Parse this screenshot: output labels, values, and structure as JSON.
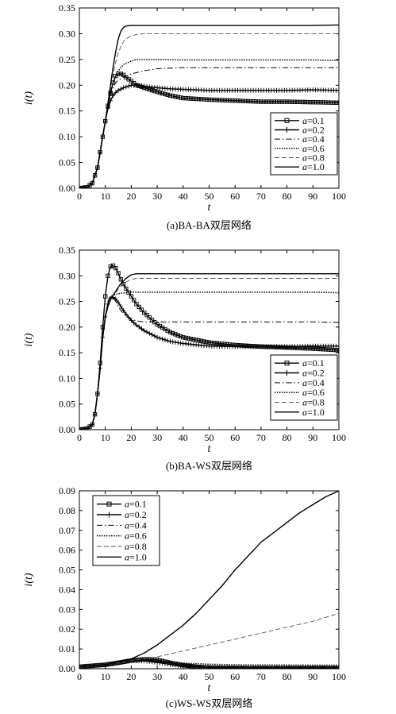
{
  "chart_data": [
    {
      "type": "line",
      "caption": "(a)BA-BA双层网络",
      "xlabel": "t",
      "ylabel": "i(t)",
      "xlim": [
        0,
        100
      ],
      "ylim": [
        0,
        0.35
      ],
      "xticks": [
        0,
        10,
        20,
        30,
        40,
        50,
        60,
        70,
        80,
        90,
        100
      ],
      "yticks": [
        "0.00",
        "0.05",
        "0.10",
        "0.15",
        "0.20",
        "0.25",
        "0.30",
        "0.35"
      ],
      "legend_position": "bottom-right",
      "grid": false,
      "series": [
        {
          "name": "a=0.1",
          "style": "square",
          "x": [
            0,
            3,
            5,
            7,
            8,
            9,
            10,
            11,
            12,
            13,
            14,
            15,
            16,
            17,
            18,
            20,
            22,
            25,
            30,
            35,
            40,
            50,
            60,
            70,
            80,
            90,
            100
          ],
          "y": [
            0,
            0.002,
            0.01,
            0.04,
            0.07,
            0.1,
            0.13,
            0.16,
            0.185,
            0.205,
            0.218,
            0.222,
            0.222,
            0.22,
            0.215,
            0.208,
            0.2,
            0.195,
            0.187,
            0.18,
            0.175,
            0.172,
            0.17,
            0.168,
            0.168,
            0.167,
            0.166
          ]
        },
        {
          "name": "a=0.2",
          "style": "plus",
          "x": [
            0,
            3,
            5,
            7,
            8,
            9,
            10,
            11,
            12,
            13,
            14,
            15,
            17,
            20,
            22,
            25,
            30,
            35,
            40,
            50,
            60,
            70,
            80,
            90,
            100
          ],
          "y": [
            0,
            0.002,
            0.01,
            0.04,
            0.07,
            0.1,
            0.13,
            0.155,
            0.17,
            0.18,
            0.186,
            0.19,
            0.195,
            0.2,
            0.2,
            0.198,
            0.195,
            0.193,
            0.192,
            0.19,
            0.19,
            0.19,
            0.19,
            0.191,
            0.19
          ]
        },
        {
          "name": "a=0.4",
          "style": "dashdot",
          "x": [
            0,
            3,
            5,
            7,
            8,
            9,
            10,
            11,
            12,
            13,
            14,
            15,
            17,
            20,
            25,
            30,
            40,
            50,
            60,
            70,
            80,
            90,
            100
          ],
          "y": [
            0,
            0.002,
            0.01,
            0.04,
            0.07,
            0.1,
            0.13,
            0.16,
            0.18,
            0.195,
            0.205,
            0.21,
            0.215,
            0.222,
            0.228,
            0.232,
            0.234,
            0.234,
            0.234,
            0.234,
            0.234,
            0.234,
            0.234
          ]
        },
        {
          "name": "a=0.6",
          "style": "dotted",
          "x": [
            0,
            3,
            5,
            7,
            8,
            9,
            10,
            11,
            12,
            13,
            14,
            15,
            17,
            20,
            22,
            25,
            30,
            40,
            50,
            60,
            70,
            80,
            90,
            100
          ],
          "y": [
            0,
            0.002,
            0.01,
            0.04,
            0.07,
            0.1,
            0.13,
            0.16,
            0.185,
            0.205,
            0.218,
            0.228,
            0.24,
            0.247,
            0.25,
            0.25,
            0.25,
            0.249,
            0.249,
            0.249,
            0.249,
            0.249,
            0.249,
            0.248
          ]
        },
        {
          "name": "a=0.8",
          "style": "dashed",
          "x": [
            0,
            3,
            5,
            7,
            8,
            9,
            10,
            11,
            12,
            13,
            14,
            15,
            16,
            17,
            18,
            20,
            22,
            25,
            30,
            40,
            50,
            60,
            70,
            80,
            90,
            100
          ],
          "y": [
            0,
            0.002,
            0.01,
            0.04,
            0.07,
            0.1,
            0.13,
            0.165,
            0.195,
            0.222,
            0.245,
            0.262,
            0.275,
            0.285,
            0.29,
            0.296,
            0.298,
            0.3,
            0.3,
            0.3,
            0.3,
            0.3,
            0.3,
            0.3,
            0.3,
            0.3
          ]
        },
        {
          "name": "a=1.0",
          "style": "solid",
          "x": [
            0,
            3,
            5,
            7,
            8,
            9,
            10,
            11,
            12,
            13,
            14,
            15,
            16,
            17,
            18,
            20,
            22,
            25,
            30,
            40,
            50,
            60,
            70,
            80,
            90,
            100
          ],
          "y": [
            0,
            0.002,
            0.01,
            0.04,
            0.07,
            0.1,
            0.13,
            0.165,
            0.2,
            0.235,
            0.265,
            0.29,
            0.305,
            0.312,
            0.315,
            0.316,
            0.316,
            0.316,
            0.316,
            0.316,
            0.316,
            0.316,
            0.316,
            0.316,
            0.316,
            0.317
          ]
        }
      ]
    },
    {
      "type": "line",
      "caption": "(b)BA-WS双层网络",
      "xlabel": "t",
      "ylabel": "i(t)",
      "xlim": [
        0,
        100
      ],
      "ylim": [
        0,
        0.35
      ],
      "xticks": [
        0,
        10,
        20,
        30,
        40,
        50,
        60,
        70,
        80,
        90,
        100
      ],
      "yticks": [
        "0.00",
        "0.05",
        "0.10",
        "0.15",
        "0.20",
        "0.25",
        "0.30",
        "0.35"
      ],
      "legend_position": "bottom-right",
      "grid": false,
      "series": [
        {
          "name": "a=0.1",
          "style": "square",
          "x": [
            0,
            3,
            5,
            6,
            7,
            8,
            9,
            10,
            11,
            12,
            13,
            14,
            15,
            16,
            18,
            20,
            22,
            25,
            30,
            35,
            40,
            50,
            60,
            70,
            80,
            90,
            100
          ],
          "y": [
            0,
            0.002,
            0.01,
            0.03,
            0.07,
            0.13,
            0.2,
            0.26,
            0.3,
            0.318,
            0.32,
            0.315,
            0.305,
            0.293,
            0.275,
            0.26,
            0.245,
            0.228,
            0.205,
            0.19,
            0.18,
            0.17,
            0.165,
            0.162,
            0.16,
            0.158,
            0.155
          ]
        },
        {
          "name": "a=0.2",
          "style": "plus",
          "x": [
            0,
            3,
            5,
            6,
            7,
            8,
            9,
            10,
            11,
            12,
            13,
            14,
            15,
            16,
            18,
            20,
            22,
            25,
            30,
            35,
            40,
            50,
            60,
            70,
            80,
            90,
            100
          ],
          "y": [
            0,
            0.002,
            0.01,
            0.03,
            0.07,
            0.12,
            0.18,
            0.22,
            0.245,
            0.255,
            0.258,
            0.255,
            0.248,
            0.24,
            0.225,
            0.213,
            0.204,
            0.193,
            0.18,
            0.172,
            0.168,
            0.163,
            0.162,
            0.162,
            0.162,
            0.163,
            0.163
          ]
        },
        {
          "name": "a=0.4",
          "style": "dashdot",
          "x": [
            0,
            3,
            5,
            6,
            7,
            8,
            9,
            10,
            11,
            12,
            13,
            14,
            15,
            16,
            18,
            20,
            22,
            25,
            30,
            35,
            40,
            50,
            60,
            70,
            80,
            90,
            100
          ],
          "y": [
            0,
            0.002,
            0.01,
            0.03,
            0.07,
            0.12,
            0.18,
            0.22,
            0.25,
            0.262,
            0.258,
            0.25,
            0.24,
            0.232,
            0.222,
            0.216,
            0.212,
            0.21,
            0.21,
            0.21,
            0.21,
            0.21,
            0.21,
            0.21,
            0.21,
            0.21,
            0.209
          ]
        },
        {
          "name": "a=0.6",
          "style": "dotted",
          "x": [
            0,
            3,
            5,
            6,
            7,
            8,
            9,
            10,
            11,
            12,
            13,
            14,
            15,
            16,
            18,
            20,
            25,
            30,
            40,
            50,
            60,
            70,
            80,
            90,
            100
          ],
          "y": [
            0,
            0.002,
            0.01,
            0.03,
            0.07,
            0.12,
            0.18,
            0.22,
            0.245,
            0.258,
            0.262,
            0.264,
            0.265,
            0.266,
            0.267,
            0.268,
            0.268,
            0.268,
            0.268,
            0.268,
            0.268,
            0.268,
            0.268,
            0.268,
            0.267
          ]
        },
        {
          "name": "a=0.8",
          "style": "dashed",
          "x": [
            0,
            3,
            5,
            6,
            7,
            8,
            9,
            10,
            11,
            12,
            13,
            14,
            15,
            16,
            18,
            20,
            22,
            25,
            30,
            40,
            50,
            60,
            70,
            80,
            90,
            100
          ],
          "y": [
            0,
            0.002,
            0.01,
            0.03,
            0.07,
            0.12,
            0.18,
            0.22,
            0.24,
            0.255,
            0.262,
            0.268,
            0.274,
            0.28,
            0.288,
            0.293,
            0.295,
            0.295,
            0.295,
            0.295,
            0.295,
            0.295,
            0.295,
            0.295,
            0.295,
            0.295
          ]
        },
        {
          "name": "a=1.0",
          "style": "solid",
          "x": [
            0,
            3,
            5,
            6,
            7,
            8,
            9,
            10,
            11,
            12,
            13,
            14,
            15,
            16,
            18,
            20,
            22,
            25,
            30,
            40,
            50,
            60,
            70,
            80,
            90,
            100
          ],
          "y": [
            0,
            0.002,
            0.01,
            0.03,
            0.07,
            0.12,
            0.18,
            0.22,
            0.24,
            0.255,
            0.262,
            0.27,
            0.278,
            0.285,
            0.295,
            0.302,
            0.304,
            0.304,
            0.304,
            0.304,
            0.304,
            0.304,
            0.304,
            0.304,
            0.304,
            0.304
          ]
        }
      ]
    },
    {
      "type": "line",
      "caption": "(c)WS-WS双层网络",
      "xlabel": "t",
      "ylabel": "i(t)",
      "xlim": [
        0,
        100
      ],
      "ylim": [
        0,
        0.09
      ],
      "xticks": [
        0,
        10,
        20,
        30,
        40,
        50,
        60,
        70,
        80,
        90,
        100
      ],
      "yticks": [
        "0.00",
        "0.01",
        "0.02",
        "0.03",
        "0.04",
        "0.05",
        "0.06",
        "0.07",
        "0.08",
        "0.09"
      ],
      "legend_position": "top-left",
      "grid": false,
      "series": [
        {
          "name": "a=0.1",
          "style": "square",
          "x": [
            0,
            5,
            10,
            15,
            20,
            25,
            28,
            30,
            35,
            40,
            45,
            50,
            60,
            70,
            80,
            90,
            100
          ],
          "y": [
            0.001,
            0.0015,
            0.002,
            0.003,
            0.0042,
            0.0048,
            0.0048,
            0.0045,
            0.003,
            0.0018,
            0.001,
            0.0006,
            0.0004,
            0.0003,
            0.0003,
            0.0003,
            0.0003
          ]
        },
        {
          "name": "a=0.2",
          "style": "plus",
          "x": [
            0,
            5,
            10,
            15,
            20,
            25,
            30,
            35,
            40,
            45,
            50,
            60,
            70,
            80,
            90,
            100
          ],
          "y": [
            0.001,
            0.0015,
            0.002,
            0.003,
            0.004,
            0.004,
            0.0032,
            0.0022,
            0.0014,
            0.0009,
            0.0006,
            0.0004,
            0.0004,
            0.0004,
            0.0004,
            0.0004
          ]
        },
        {
          "name": "a=0.4",
          "style": "dashdot",
          "x": [
            0,
            5,
            10,
            15,
            20,
            25,
            30,
            35,
            40,
            50,
            60,
            70,
            80,
            90,
            100
          ],
          "y": [
            0.001,
            0.0015,
            0.002,
            0.003,
            0.004,
            0.0042,
            0.0038,
            0.003,
            0.0022,
            0.0014,
            0.001,
            0.0008,
            0.0008,
            0.0008,
            0.0008
          ]
        },
        {
          "name": "a=0.6",
          "style": "dotted",
          "x": [
            0,
            5,
            10,
            15,
            20,
            25,
            30,
            35,
            40,
            50,
            60,
            70,
            80,
            90,
            100
          ],
          "y": [
            0.001,
            0.0015,
            0.002,
            0.003,
            0.004,
            0.0045,
            0.0042,
            0.0035,
            0.0028,
            0.0023,
            0.002,
            0.0019,
            0.0019,
            0.0018,
            0.0018
          ]
        },
        {
          "name": "a=0.8",
          "style": "dashed",
          "x": [
            0,
            10,
            20,
            30,
            40,
            50,
            60,
            70,
            80,
            90,
            100
          ],
          "y": [
            0.001,
            0.002,
            0.004,
            0.006,
            0.009,
            0.012,
            0.015,
            0.018,
            0.021,
            0.024,
            0.028
          ]
        },
        {
          "name": "a=1.0",
          "style": "solid",
          "x": [
            0,
            10,
            20,
            25,
            30,
            35,
            40,
            45,
            50,
            55,
            60,
            65,
            70,
            75,
            80,
            85,
            90,
            95,
            100
          ],
          "y": [
            0.001,
            0.002,
            0.005,
            0.008,
            0.012,
            0.017,
            0.022,
            0.028,
            0.035,
            0.042,
            0.05,
            0.057,
            0.064,
            0.069,
            0.074,
            0.079,
            0.083,
            0.087,
            0.09
          ]
        }
      ]
    }
  ]
}
